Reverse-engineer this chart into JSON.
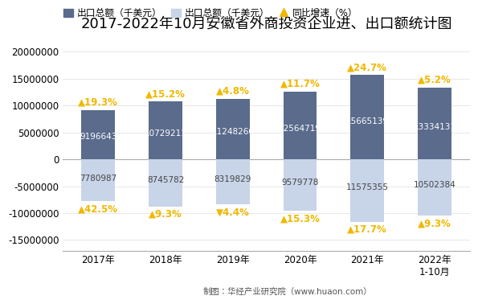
{
  "title": "2017-2022年10月安徽省外商投资企业进、出口额统计图",
  "years": [
    "2017年",
    "2018年",
    "2019年",
    "2020年",
    "2021年",
    "2022年\n1-10月"
  ],
  "export_values": [
    9196643,
    10729211,
    11248260,
    12564719,
    15665139,
    13334131
  ],
  "import_values": [
    -7780987,
    -8745782,
    -8319829,
    -9579778,
    -11575355,
    -10502384
  ],
  "import_labels": [
    "7780987",
    "8745782",
    "8319829",
    "9579778",
    "11575355",
    "10502384"
  ],
  "export_yoy": [
    19.3,
    15.2,
    4.8,
    11.7,
    24.7,
    5.2
  ],
  "import_yoy_labels": [
    "42.5",
    "9.3",
    "4.4",
    "15.3",
    "17.7",
    "9.3"
  ],
  "import_yoy_down": [
    false,
    false,
    true,
    false,
    false,
    false
  ],
  "export_bar_color": "#5a6b8c",
  "import_bar_color": "#c8d4e8",
  "yoy_color": "#f0b800",
  "ylim": [
    -17000000,
    22000000
  ],
  "yticks": [
    -15000000,
    -10000000,
    -5000000,
    0,
    5000000,
    10000000,
    15000000,
    20000000
  ],
  "legend_label_export": "出口总额（千美元）",
  "legend_label_import": "出口总额（千美元）",
  "legend_label_yoy": "同比增速（%）",
  "footer": "制图：华经产业研究院（www.huaon.com）",
  "bar_width": 0.5,
  "title_fontsize": 13,
  "tick_fontsize": 8.5,
  "label_fontsize": 7.5,
  "yoy_fontsize": 8.5
}
